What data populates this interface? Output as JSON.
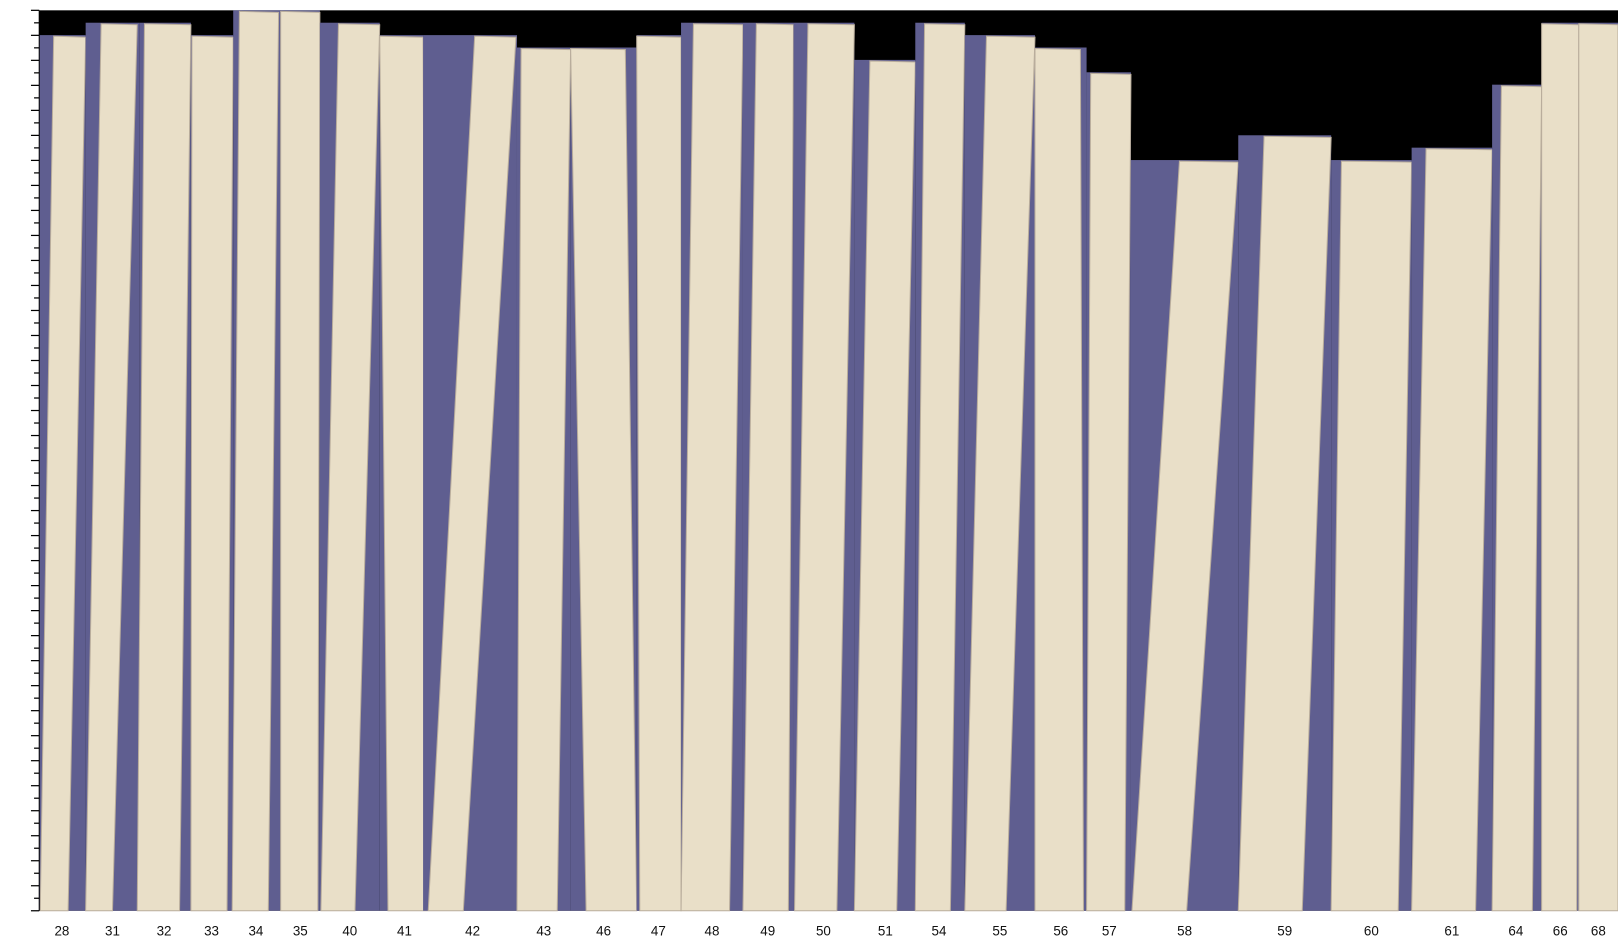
{
  "colors": {
    "background": "#000000",
    "gap": "#5f5e90",
    "board": "#e9dfc8",
    "board_edge": "#b9ad9c",
    "axis": "#000000"
  },
  "columns": [
    {
      "label": "28"
    },
    {
      "label": "31"
    },
    {
      "label": "32"
    },
    {
      "label": "33"
    },
    {
      "label": "34"
    },
    {
      "label": "35"
    },
    {
      "label": "40"
    },
    {
      "label": "41"
    },
    {
      "label": "42"
    },
    {
      "label": "43"
    },
    {
      "label": "46"
    },
    {
      "label": "47"
    },
    {
      "label": "48"
    },
    {
      "label": "49"
    },
    {
      "label": "50"
    },
    {
      "label": "51"
    },
    {
      "label": "54"
    },
    {
      "label": "55"
    },
    {
      "label": "56"
    },
    {
      "label": "57"
    },
    {
      "label": "58"
    },
    {
      "label": "59"
    },
    {
      "label": "60"
    },
    {
      "label": "61"
    },
    {
      "label": "64"
    },
    {
      "label": "66"
    },
    {
      "label": "68"
    }
  ]
}
